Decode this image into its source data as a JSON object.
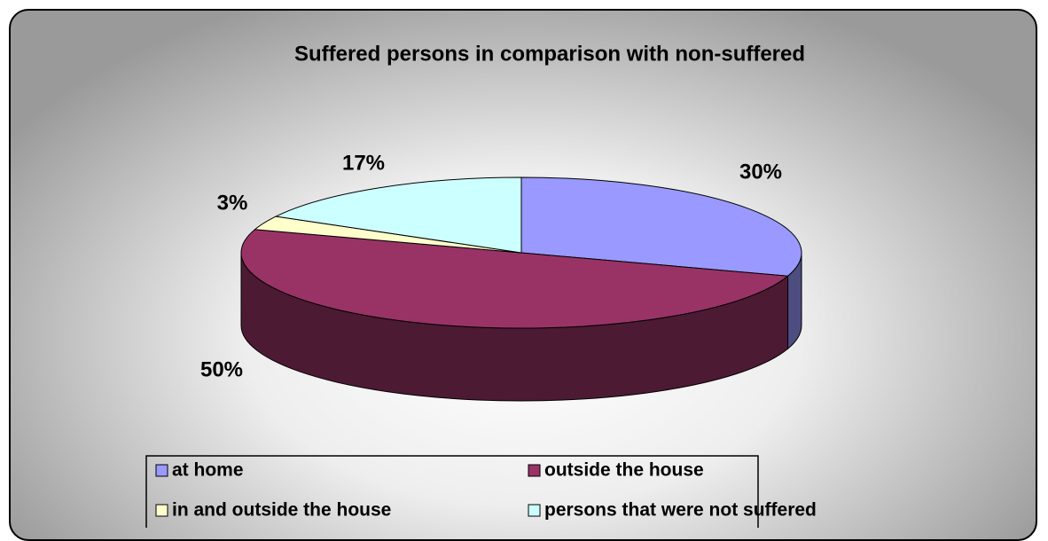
{
  "chart_data": {
    "type": "pie",
    "title": "Suffered persons  in comparison with non-suffered",
    "categories": [
      "at home",
      "outside the house",
      "in and outside the house",
      "persons that were not suffered"
    ],
    "values": [
      30,
      50,
      3,
      17
    ],
    "value_labels": [
      "30%",
      "50%",
      "3%",
      "17%"
    ],
    "colors": [
      "#9999ff",
      "#993366",
      "#ffffcc",
      "#ccffff"
    ]
  }
}
